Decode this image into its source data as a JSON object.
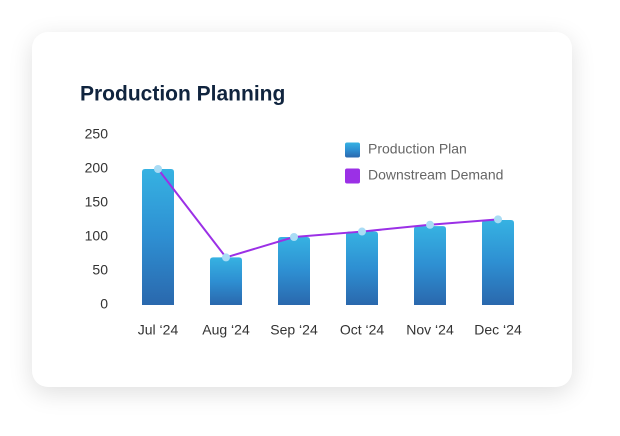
{
  "chart_data": {
    "type": "combo",
    "title": "Production Planning",
    "categories": [
      "Jul ‘24",
      "Aug ‘24",
      "Sep ‘24",
      "Oct ‘24",
      "Nov ‘24",
      "Dec ‘24"
    ],
    "series": [
      {
        "name": "Production Plan",
        "type": "bar",
        "color": "#2e8fd2",
        "values": [
          200,
          70,
          100,
          108,
          116,
          125
        ]
      },
      {
        "name": "Downstream Demand",
        "type": "line",
        "color": "#9b30e6",
        "values": [
          200,
          70,
          100,
          108,
          118,
          126
        ]
      }
    ],
    "ylim": [
      0,
      250
    ],
    "yticks": [
      0,
      50,
      100,
      150,
      200,
      250
    ],
    "grid": false
  }
}
